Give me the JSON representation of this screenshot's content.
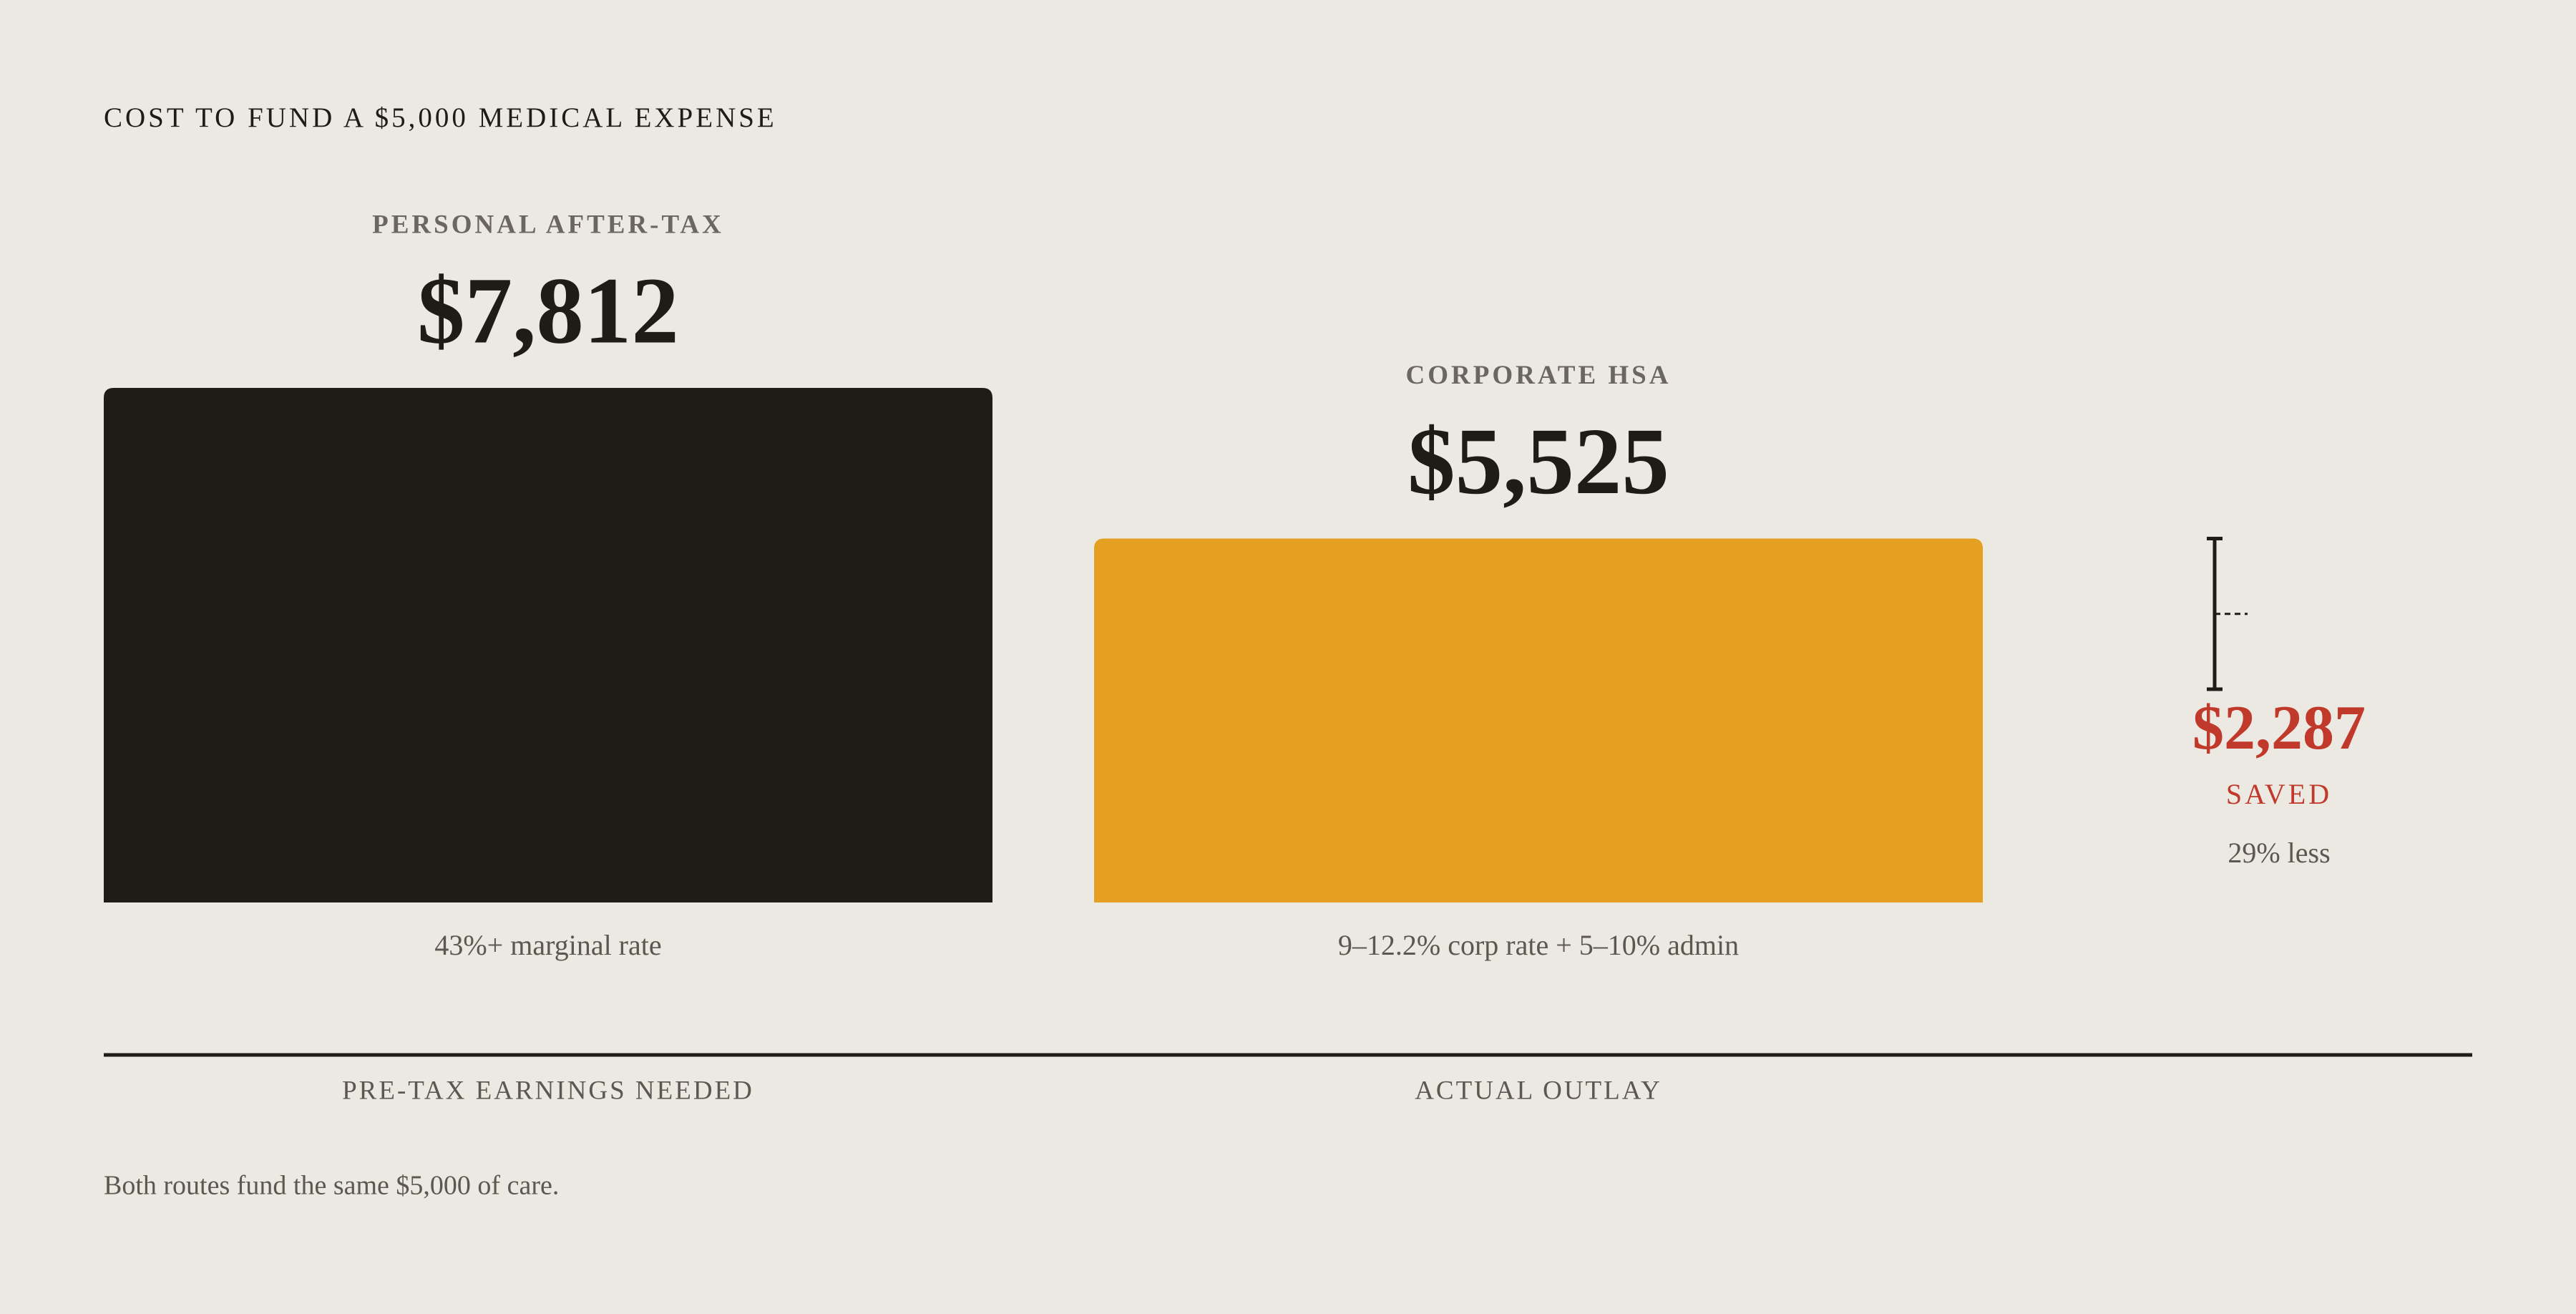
{
  "chart_data": {
    "type": "bar",
    "title": "COST TO FUND A $5,000 MEDICAL EXPENSE",
    "categories": [
      "PERSONAL AFTER-TAX",
      "CORPORATE HSA"
    ],
    "values": [
      7812,
      5525
    ],
    "value_labels": [
      "$7,812",
      "$5,525"
    ],
    "colors": [
      "#1f1c18",
      "#e5a023"
    ],
    "notes": [
      "43%+ marginal rate",
      "9–12.2% corp rate + 5–10% admin"
    ],
    "axis_labels": [
      "PRE-TAX EARNINGS NEEDED",
      "ACTUAL OUTLAY"
    ],
    "savings": {
      "value": 2287,
      "value_label": "$2,287",
      "label": "SAVED",
      "note": "29% less",
      "color": "#c0392b"
    },
    "footnote": "Both routes fund the same $5,000 of care."
  }
}
